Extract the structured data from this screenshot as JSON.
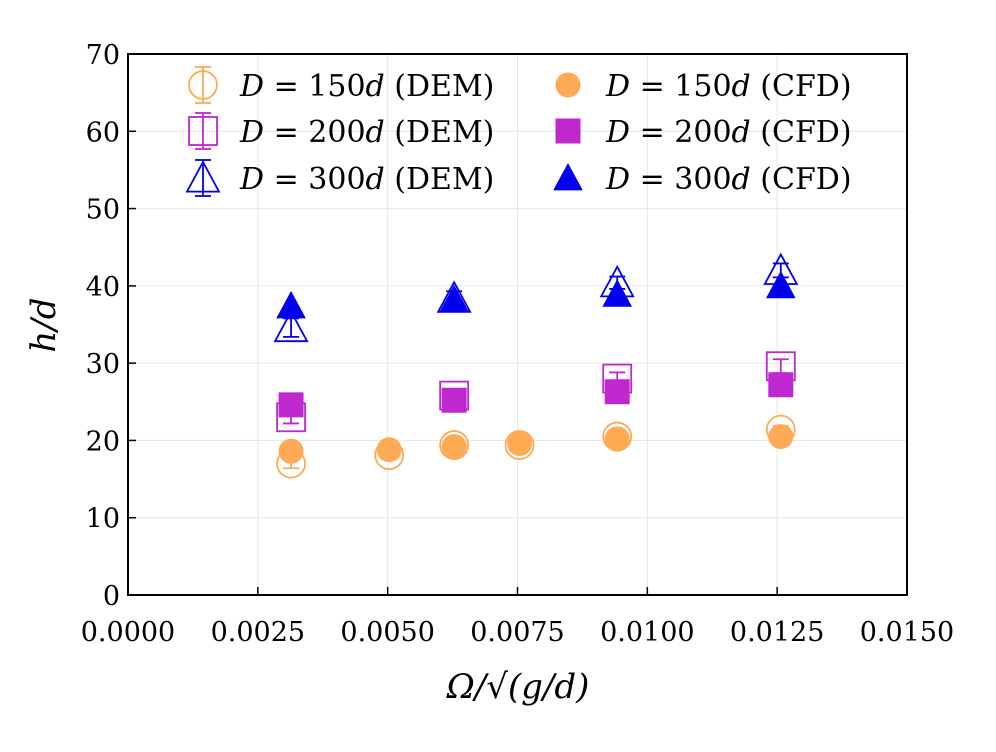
{
  "chart_data": {
    "type": "scatter",
    "title": "",
    "xlabel": "Ω/√(g/d)",
    "ylabel": "h/d",
    "xlim": [
      0.0,
      0.015
    ],
    "ylim": [
      0,
      70
    ],
    "grid": true,
    "x_ticks": [
      "0.0000",
      "0.0025",
      "0.0050",
      "0.0075",
      "0.0100",
      "0.0125",
      "0.0150"
    ],
    "x_tick_values": [
      0.0,
      0.0025,
      0.005,
      0.0075,
      0.01,
      0.0125,
      0.015
    ],
    "y_ticks": [
      "0",
      "10",
      "20",
      "30",
      "40",
      "50",
      "60",
      "70"
    ],
    "y_tick_values": [
      0,
      10,
      20,
      30,
      40,
      50,
      60,
      70
    ],
    "legend_position": "top",
    "series": [
      {
        "name": "D = 150d (DEM)",
        "legend": {
          "var": "D",
          "mid": " = 150",
          "var2": "d",
          "tail": " (DEM)"
        },
        "marker": "circle-open",
        "color": "#ffaa55",
        "x": [
          0.00314,
          0.00503,
          0.00628,
          0.00754,
          0.00942,
          0.01257
        ],
        "y": [
          17.0,
          18.1,
          19.4,
          19.4,
          20.5,
          21.4
        ],
        "err": [
          0.6,
          0.5,
          0.5,
          0.4,
          0.5,
          0.5
        ]
      },
      {
        "name": "D = 200d (DEM)",
        "legend": {
          "var": "D",
          "mid": " = 200",
          "var2": "d",
          "tail": " (DEM)"
        },
        "marker": "square-open",
        "color": "#bf28cf",
        "x": [
          0.00314,
          0.00628,
          0.00942,
          0.01257
        ],
        "y": [
          23.0,
          25.8,
          28.0,
          29.6
        ],
        "err": [
          0.8,
          0.8,
          0.8,
          0.9
        ]
      },
      {
        "name": "D = 300d (DEM)",
        "legend": {
          "var": "D",
          "mid": " = 300",
          "var2": "d",
          "tail": " (DEM)"
        },
        "marker": "triangle-open",
        "color": "#0000ee",
        "x": [
          0.00314,
          0.00628,
          0.00942,
          0.01257
        ],
        "y": [
          34.6,
          38.4,
          40.4,
          42.0
        ],
        "err": [
          1.2,
          0.9,
          0.8,
          0.9
        ]
      },
      {
        "name": "D = 150d (CFD)",
        "legend": {
          "var": "D",
          "mid": " = 150",
          "var2": "d",
          "tail": " (CFD)"
        },
        "marker": "circle-filled",
        "color": "#ffaa55",
        "x": [
          0.00314,
          0.00503,
          0.00628,
          0.00754,
          0.00942,
          0.01257
        ],
        "y": [
          18.6,
          18.8,
          19.2,
          19.6,
          20.2,
          20.5
        ]
      },
      {
        "name": "D = 200d (CFD)",
        "legend": {
          "var": "D",
          "mid": " = 200",
          "var2": "d",
          "tail": " (CFD)"
        },
        "marker": "square-filled",
        "color": "#bf28cf",
        "x": [
          0.00314,
          0.00628,
          0.00942,
          0.01257
        ],
        "y": [
          24.6,
          25.2,
          26.3,
          27.2
        ]
      },
      {
        "name": "D = 300d (CFD)",
        "legend": {
          "var": "D",
          "mid": " = 300",
          "var2": "d",
          "tail": " (CFD)"
        },
        "marker": "triangle-filled",
        "color": "#0000ee",
        "x": [
          0.00314,
          0.00628,
          0.00942,
          0.01257
        ],
        "y": [
          37.4,
          38.2,
          38.9,
          40.0
        ]
      }
    ]
  }
}
